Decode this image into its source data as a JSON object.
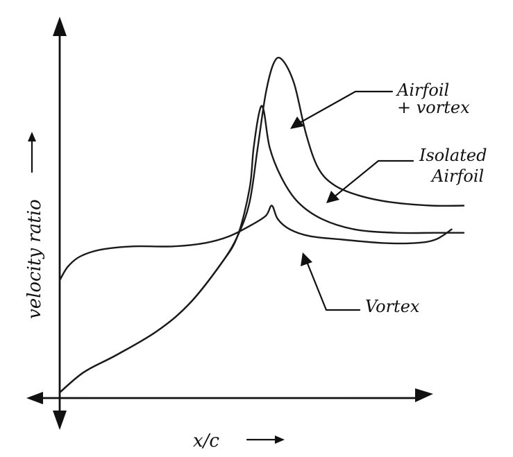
{
  "chart_data": {
    "type": "line",
    "title": "",
    "xlabel": "x/c",
    "ylabel": "velocity ratio",
    "grid": false,
    "series": [
      {
        "name": "Airfoil + vortex",
        "points": [
          [
            0.0,
            0.0
          ],
          [
            0.06,
            0.06
          ],
          [
            0.14,
            0.11
          ],
          [
            0.24,
            0.18
          ],
          [
            0.32,
            0.26
          ],
          [
            0.4,
            0.38
          ],
          [
            0.44,
            0.46
          ],
          [
            0.47,
            0.56
          ],
          [
            0.49,
            0.72
          ],
          [
            0.51,
            0.88
          ],
          [
            0.53,
            0.97
          ],
          [
            0.55,
            0.98
          ],
          [
            0.58,
            0.91
          ],
          [
            0.61,
            0.76
          ],
          [
            0.64,
            0.66
          ],
          [
            0.68,
            0.61
          ],
          [
            0.74,
            0.58
          ],
          [
            0.82,
            0.56
          ],
          [
            0.92,
            0.55
          ],
          [
            1.0,
            0.55
          ]
        ]
      },
      {
        "name": "Isolated Airfoil",
        "points": [
          [
            0.0,
            0.0
          ],
          [
            0.06,
            0.06
          ],
          [
            0.14,
            0.11
          ],
          [
            0.24,
            0.18
          ],
          [
            0.32,
            0.26
          ],
          [
            0.4,
            0.38
          ],
          [
            0.44,
            0.46
          ],
          [
            0.47,
            0.6
          ],
          [
            0.48,
            0.72
          ],
          [
            0.495,
            0.83
          ],
          [
            0.505,
            0.83
          ],
          [
            0.52,
            0.72
          ],
          [
            0.55,
            0.63
          ],
          [
            0.59,
            0.56
          ],
          [
            0.65,
            0.51
          ],
          [
            0.73,
            0.48
          ],
          [
            0.83,
            0.47
          ],
          [
            0.93,
            0.47
          ],
          [
            1.0,
            0.47
          ]
        ]
      },
      {
        "name": "Vortex",
        "points": [
          [
            0.0,
            0.33
          ],
          [
            0.02,
            0.37
          ],
          [
            0.05,
            0.4
          ],
          [
            0.1,
            0.42
          ],
          [
            0.18,
            0.43
          ],
          [
            0.28,
            0.43
          ],
          [
            0.36,
            0.44
          ],
          [
            0.42,
            0.46
          ],
          [
            0.47,
            0.49
          ],
          [
            0.51,
            0.52
          ],
          [
            0.525,
            0.55
          ],
          [
            0.54,
            0.51
          ],
          [
            0.57,
            0.48
          ],
          [
            0.62,
            0.46
          ],
          [
            0.7,
            0.45
          ],
          [
            0.8,
            0.44
          ],
          [
            0.88,
            0.44
          ],
          [
            0.93,
            0.45
          ],
          [
            0.97,
            0.48
          ]
        ]
      }
    ],
    "annotations": [
      {
        "text": [
          "Airfoil",
          "+ vortex"
        ],
        "series": 0
      },
      {
        "text": [
          "Isolated",
          "Airfoil"
        ],
        "series": 1
      },
      {
        "text": [
          "Vortex"
        ],
        "series": 2
      }
    ]
  }
}
